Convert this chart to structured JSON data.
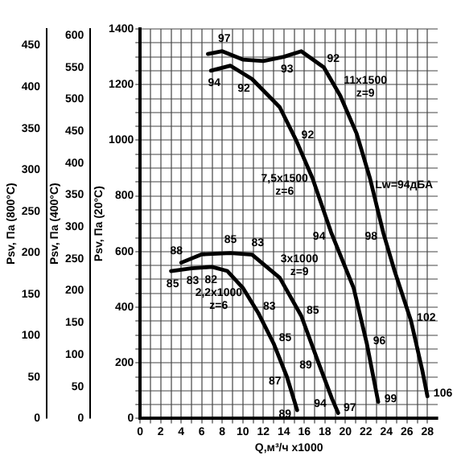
{
  "chart_data": {
    "type": "line",
    "xlabel": "Q,м³/ч x1000",
    "ylabel": "Psv, Па (20°C)",
    "y2label": "Psv, Па (400°C)",
    "y3label": "Psv, Па (800°C)",
    "xlim": [
      0,
      29
    ],
    "xticks": [
      0,
      {
        "value": 1,
        "label": null
      },
      2,
      {
        "value": 3,
        "label": null
      },
      4,
      {
        "value": 5,
        "label": null
      },
      6,
      {
        "value": 7,
        "label": null
      },
      8,
      {
        "value": 9,
        "label": null
      },
      10,
      {
        "value": 11,
        "label": null
      },
      12,
      {
        "value": 13,
        "label": null
      },
      14,
      {
        "value": 15,
        "label": null
      },
      16,
      {
        "value": 17,
        "label": null
      },
      18,
      {
        "value": 19,
        "label": null
      },
      20,
      {
        "value": 21,
        "label": null
      },
      22,
      {
        "value": 23,
        "label": null
      },
      24,
      {
        "value": 25,
        "label": null
      },
      26,
      {
        "value": 27,
        "label": null
      },
      28
    ],
    "ylim": [
      0,
      1400
    ],
    "yticks": [
      0,
      {
        "value": 50,
        "label": null
      },
      {
        "value": 100,
        "label": null
      },
      {
        "value": 150,
        "label": null
      },
      200,
      {
        "value": 250,
        "label": null
      },
      {
        "value": 300,
        "label": null
      },
      {
        "value": 350,
        "label": null
      },
      400,
      {
        "value": 450,
        "label": null
      },
      {
        "value": 500,
        "label": null
      },
      {
        "value": 550,
        "label": null
      },
      600,
      {
        "value": 650,
        "label": null
      },
      {
        "value": 700,
        "label": null
      },
      {
        "value": 750,
        "label": null
      },
      800,
      {
        "value": 850,
        "label": null
      },
      {
        "value": 900,
        "label": null
      },
      {
        "value": 950,
        "label": null
      },
      1000,
      {
        "value": 1050,
        "label": null
      },
      {
        "value": 1100,
        "label": null
      },
      {
        "value": 1150,
        "label": null
      },
      1200,
      {
        "value": 1250,
        "label": null
      },
      {
        "value": 1300,
        "label": null
      },
      {
        "value": 1350,
        "label": null
      },
      1400
    ],
    "y2lim": [
      0,
      610
    ],
    "y2ticks": [
      0,
      50,
      100,
      150,
      200,
      250,
      300,
      350,
      400,
      450,
      500,
      550,
      600
    ],
    "y3lim": [
      0,
      470
    ],
    "y3ticks": [
      0,
      50,
      100,
      150,
      200,
      250,
      300,
      350,
      400,
      450
    ],
    "grid": true,
    "legend": false,
    "marker": "none",
    "series": [
      {
        "name": "11x1500 z=9",
        "color": "#000000",
        "x": [
          6.6,
          8,
          10,
          12,
          14,
          15.7,
          17.9,
          19.5,
          21.1,
          22.4,
          23.7,
          24.8,
          26.4,
          27.5,
          28
        ],
        "values": [
          1310,
          1320,
          1290,
          1285,
          1300,
          1320,
          1262,
          1160,
          1024,
          863,
          667,
          530,
          351,
          173,
          80
        ]
      },
      {
        "name": "7,5x1500 z=6",
        "color": "#000000",
        "x": [
          6.9,
          8.8,
          10.9,
          13.6,
          15.2,
          16.8,
          18.6,
          20.8,
          22.1,
          23.2
        ],
        "values": [
          1250,
          1268,
          1220,
          1119,
          1000,
          863,
          670,
          470,
          268,
          60
        ]
      },
      {
        "name": "3x1000 z=9",
        "color": "#000000",
        "x": [
          4,
          6,
          8.8,
          10.9,
          13.6,
          15.7,
          17.3,
          18.7,
          19.3
        ],
        "values": [
          560,
          590,
          595,
          589,
          506,
          369,
          208,
          71,
          20
        ]
      },
      {
        "name": "2,2x1000 z=6",
        "color": "#000000",
        "x": [
          3,
          5,
          7,
          8.5,
          10,
          11.5,
          13,
          14.3,
          15.3
        ],
        "values": [
          530,
          540,
          545,
          530,
          470,
          380,
          270,
          150,
          30
        ]
      }
    ],
    "annotations": [
      "Lw=94дБА",
      {
        "text": "97",
        "x": 8,
        "y": 1320
      },
      {
        "text": "93",
        "x": 14,
        "y": 1300
      },
      {
        "text": "92",
        "x": 17.9,
        "y": 1262
      },
      {
        "text": "98",
        "x": 23.7,
        "y": 667
      },
      {
        "text": "102",
        "x": 26.4,
        "y": 351
      },
      {
        "text": "106",
        "x": 28,
        "y": 80
      },
      {
        "text": "94",
        "x": 6.9,
        "y": 1250
      },
      {
        "text": "92",
        "x": 10.9,
        "y": 1220
      },
      {
        "text": "92",
        "x": 15.2,
        "y": 1000
      },
      {
        "text": "94",
        "x": 18.6,
        "y": 670
      },
      {
        "text": "96",
        "x": 22.1,
        "y": 268
      },
      {
        "text": "99",
        "x": 23.2,
        "y": 60
      },
      {
        "text": "88",
        "x": 4,
        "y": 560
      },
      {
        "text": "85",
        "x": 8.8,
        "y": 595
      },
      {
        "text": "83",
        "x": 10.9,
        "y": 589
      },
      {
        "text": "85",
        "x": 15.7,
        "y": 369
      },
      {
        "text": "89",
        "x": 17.3,
        "y": 208
      },
      {
        "text": "94",
        "x": 18.7,
        "y": 71
      },
      {
        "text": "97",
        "x": 19.3,
        "y": 20
      },
      {
        "text": "85",
        "x": 3,
        "y": 530
      },
      {
        "text": "83",
        "x": 5,
        "y": 540
      },
      {
        "text": "82",
        "x": 7,
        "y": 545
      },
      {
        "text": "83",
        "x": 11.5,
        "y": 380
      },
      {
        "text": "85",
        "x": 13,
        "y": 270
      },
      {
        "text": "87",
        "x": 14.3,
        "y": 150
      },
      {
        "text": "89",
        "x": 15.3,
        "y": 30
      }
    ]
  }
}
